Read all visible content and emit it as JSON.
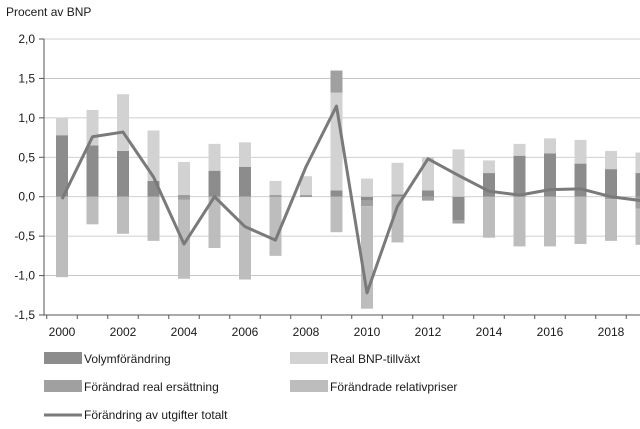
{
  "chart_data": {
    "type": "bar",
    "ylabel": "Procent av BNP",
    "ylim": [
      -1.5,
      2.0
    ],
    "yticks": [
      "2,0",
      "1,5",
      "1,0",
      "0,5",
      "0,0",
      "-0,5",
      "-1,0",
      "-1,5"
    ],
    "ytick_values": [
      2.0,
      1.5,
      1.0,
      0.5,
      0.0,
      -0.5,
      -1.0,
      -1.5
    ],
    "xtick_labels": [
      "2000",
      "2002",
      "2004",
      "2006",
      "2008",
      "2010",
      "2012",
      "2014",
      "2016",
      "2018"
    ],
    "categories": [
      "2000",
      "2001",
      "2002",
      "2003",
      "2004",
      "2005",
      "2006",
      "2007",
      "2008",
      "2009",
      "2010",
      "2011",
      "2012",
      "2013",
      "2014",
      "2015",
      "2016",
      "2017",
      "2018",
      "2019"
    ],
    "grid": "horizontal",
    "legend_position": "bottom",
    "series": [
      {
        "name": "Volymförändring",
        "kind": "bar",
        "color": "#8c8c8c",
        "values": [
          0.78,
          0.65,
          0.58,
          0.2,
          0.02,
          0.33,
          0.38,
          0.02,
          0.02,
          0.08,
          -0.05,
          0.03,
          0.08,
          -0.3,
          0.3,
          0.52,
          0.55,
          0.42,
          0.35,
          0.3
        ]
      },
      {
        "name": "Real BNP-tillväxt",
        "kind": "bar",
        "color": "#d2d2d2",
        "values": [
          0.22,
          0.45,
          0.72,
          0.64,
          0.42,
          0.34,
          0.31,
          0.18,
          0.24,
          1.24,
          0.23,
          0.4,
          0.42,
          0.6,
          0.16,
          0.15,
          0.19,
          0.3,
          0.23,
          0.26
        ]
      },
      {
        "name": "Förändrad real ersättning",
        "kind": "bar",
        "color": "#a0a0a0",
        "values": [
          0.0,
          0.0,
          0.0,
          0.0,
          -0.04,
          0.0,
          0.0,
          0.0,
          0.0,
          0.28,
          -0.07,
          0.0,
          -0.05,
          -0.04,
          0.0,
          0.0,
          0.0,
          0.0,
          -0.03,
          -0.15
        ]
      },
      {
        "name": "Förändrade relativpriser",
        "kind": "bar",
        "color": "#bdbdbd",
        "values": [
          -1.02,
          -0.35,
          -0.47,
          -0.56,
          -1.0,
          -0.65,
          -1.05,
          -0.75,
          0.0,
          -0.45,
          -1.3,
          -0.58,
          0.0,
          0.0,
          -0.52,
          -0.63,
          -0.63,
          -0.6,
          -0.53,
          -0.46
        ]
      },
      {
        "name": "Förändring av utgifter totalt",
        "kind": "line",
        "color": "#7a7a7a",
        "values": [
          -0.03,
          0.76,
          0.82,
          0.25,
          -0.6,
          0.0,
          -0.38,
          -0.55,
          0.38,
          1.15,
          -1.22,
          -0.12,
          0.48,
          0.27,
          0.07,
          0.02,
          0.09,
          0.1,
          0.0,
          -0.05
        ]
      }
    ]
  }
}
